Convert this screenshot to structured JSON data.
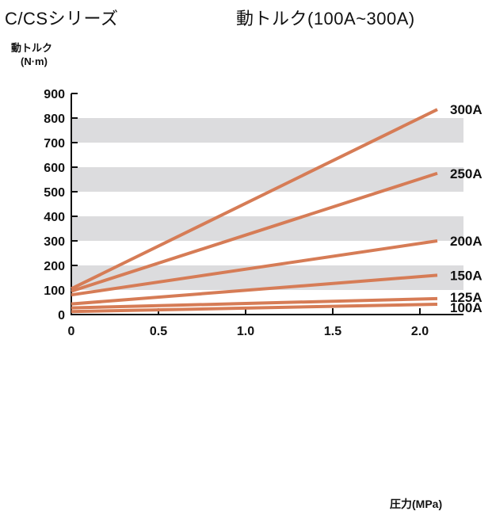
{
  "header": {
    "series_title": "C/CSシリーズ",
    "chart_title": "動トルク(100A~300A)"
  },
  "chart_data": {
    "type": "line",
    "title": "動トルク(100A~300A)",
    "ylabel": "動トルク",
    "yunit": "(N·m)",
    "xlabel": "圧力(MPa)",
    "xlim": [
      0,
      2.2
    ],
    "ylim": [
      0,
      900
    ],
    "x_ticks": [
      "0",
      "0.5",
      "1.0",
      "1.5",
      "2.0"
    ],
    "y_ticks": [
      "0",
      "100",
      "200",
      "300",
      "400",
      "500",
      "600",
      "700",
      "800",
      "900"
    ],
    "shaded_bands": [
      [
        100,
        200
      ],
      [
        300,
        400
      ],
      [
        500,
        600
      ],
      [
        700,
        800
      ]
    ],
    "band_color": "#dcdcde",
    "line_color": "#d67c56",
    "series": [
      {
        "name": "300A",
        "x": [
          0,
          2.1
        ],
        "y": [
          105,
          835
        ]
      },
      {
        "name": "250A",
        "x": [
          0,
          2.1
        ],
        "y": [
          95,
          575
        ]
      },
      {
        "name": "200A",
        "x": [
          0,
          2.1
        ],
        "y": [
          80,
          300
        ]
      },
      {
        "name": "150A",
        "x": [
          0,
          2.1
        ],
        "y": [
          43,
          160
        ]
      },
      {
        "name": "125A",
        "x": [
          0,
          2.1
        ],
        "y": [
          27,
          65
        ]
      },
      {
        "name": "100A",
        "x": [
          0,
          2.1
        ],
        "y": [
          12,
          42
        ]
      }
    ]
  }
}
